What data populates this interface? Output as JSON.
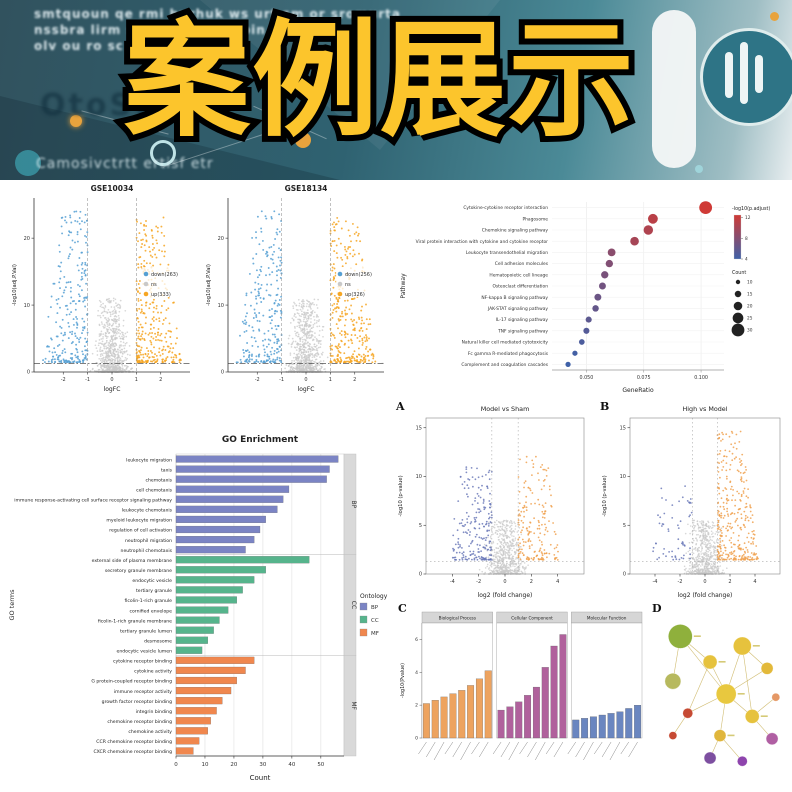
{
  "banner": {
    "title": "案例展示",
    "accent_color": "#fcc52c",
    "lines": [
      "smtquoun qe rmi hurhuk ws urt sm or sromurta",
      "nssbra lirm s qutt bnit to tbin",
      "olv ou ro sc m",
      "OtoSO'tC",
      "Camosivctrtt ertisf etr"
    ]
  },
  "chart_data": [
    {
      "type": "scatter",
      "variant": "volcano",
      "title": "GSE10034",
      "xlabel": "logFC",
      "ylabel": "-log10(adj.P.Val)",
      "xlim": [
        -3.2,
        3.2
      ],
      "ylim": [
        0,
        26
      ],
      "xticks": [
        -2,
        -1,
        0,
        1,
        2
      ],
      "yticks": [
        0,
        10,
        20
      ],
      "vlines": [
        -1,
        1
      ],
      "hline": 1.3,
      "legend": [
        {
          "label": "down(263)",
          "color": "#56a0d3"
        },
        {
          "label": "ns",
          "color": "#c9c9c9"
        },
        {
          "label": "up(333)",
          "color": "#f6a623"
        }
      ],
      "colors": {
        "down": "#56a0d3",
        "ns": "#c9c9c9",
        "up": "#f6a623"
      },
      "counts": {
        "down": 263,
        "ns": 800,
        "up": 333
      },
      "seed": 7
    },
    {
      "type": "scatter",
      "variant": "volcano",
      "title": "GSE18134",
      "xlabel": "logFC",
      "ylabel": "-log10(adj.P.Val)",
      "xlim": [
        -3.2,
        3.2
      ],
      "ylim": [
        0,
        26
      ],
      "xticks": [
        -2,
        -1,
        0,
        1,
        2
      ],
      "yticks": [
        0,
        10,
        20
      ],
      "vlines": [
        -1,
        1
      ],
      "hline": 1.3,
      "legend": [
        {
          "label": "down(256)",
          "color": "#56a0d3"
        },
        {
          "label": "ns",
          "color": "#c9c9c9"
        },
        {
          "label": "up(326)",
          "color": "#f6a623"
        }
      ],
      "colors": {
        "down": "#56a0d3",
        "ns": "#c9c9c9",
        "up": "#f6a623"
      },
      "counts": {
        "down": 256,
        "ns": 800,
        "up": 326
      },
      "seed": 13
    },
    {
      "type": "scatter",
      "variant": "dotplot",
      "xlabel": "GeneRatio",
      "ylabel": "Pathway",
      "xlim": [
        0.035,
        0.11
      ],
      "xticks": [
        0.05,
        0.075,
        0.1
      ],
      "color_legend": {
        "title": "-log10(p.adjust)",
        "min": 4,
        "max": 12.5,
        "ticks": [
          12,
          8,
          4
        ],
        "top_color": "#cf3a36",
        "bottom_color": "#3f61a8"
      },
      "size_legend": {
        "title": "Count",
        "values": [
          10,
          15,
          20,
          25,
          30
        ]
      },
      "rows": [
        {
          "pathway": "Cytokine-cytokine receptor interaction",
          "ratio": 0.102,
          "count": 30,
          "logp": 12.5
        },
        {
          "pathway": "Phagosome",
          "ratio": 0.079,
          "count": 23,
          "logp": 11.2
        },
        {
          "pathway": "Chemokine signaling pathway",
          "ratio": 0.077,
          "count": 22,
          "logp": 10.6
        },
        {
          "pathway": "Viral protein interaction with cytokine and cytokine receptor",
          "ratio": 0.071,
          "count": 20,
          "logp": 10.1
        },
        {
          "pathway": "Leukocyte transendothelial migration",
          "ratio": 0.061,
          "count": 18,
          "logp": 8.4
        },
        {
          "pathway": "Cell adhesion molecules",
          "ratio": 0.06,
          "count": 17,
          "logp": 7.9
        },
        {
          "pathway": "Hematopoietic cell lineage",
          "ratio": 0.058,
          "count": 17,
          "logp": 7.4
        },
        {
          "pathway": "Osteoclast differentiation",
          "ratio": 0.057,
          "count": 16,
          "logp": 7.0
        },
        {
          "pathway": "NF-kappa B signaling pathway",
          "ratio": 0.055,
          "count": 16,
          "logp": 6.6
        },
        {
          "pathway": "JAK-STAT signaling pathway",
          "ratio": 0.054,
          "count": 15,
          "logp": 6.2
        },
        {
          "pathway": "IL-17 signaling pathway",
          "ratio": 0.051,
          "count": 14,
          "logp": 5.8
        },
        {
          "pathway": "TNF signaling pathway",
          "ratio": 0.05,
          "count": 14,
          "logp": 5.3
        },
        {
          "pathway": "Natural killer cell mediated cytotoxicity",
          "ratio": 0.048,
          "count": 13,
          "logp": 4.8
        },
        {
          "pathway": "Fc gamma R-mediated phagocytosis",
          "ratio": 0.045,
          "count": 12,
          "logp": 4.3
        },
        {
          "pathway": "Complement and coagulation cascades",
          "ratio": 0.042,
          "count": 12,
          "logp": 3.8
        }
      ]
    },
    {
      "type": "scatter",
      "variant": "volcano",
      "panel_label": "A",
      "title": "Model vs Sham",
      "xlabel": "log2 (fold change)",
      "ylabel": "-log10 (p-value)",
      "xlim": [
        -6,
        6
      ],
      "ylim": [
        0,
        16
      ],
      "xticks": [
        -4,
        -2,
        0,
        2,
        4
      ],
      "yticks": [
        0,
        5,
        10,
        15
      ],
      "vlines": [
        -1,
        1
      ],
      "hline": 1.3,
      "colors": {
        "down": "#6b79b8",
        "ns": "#c9c9c9",
        "up": "#f0a14f"
      },
      "counts": {
        "down": 210,
        "ns": 700,
        "up": 190
      },
      "seed": 21
    },
    {
      "type": "scatter",
      "variant": "volcano",
      "panel_label": "B",
      "title": "High vs Model",
      "xlabel": "log2 (fold change)",
      "ylabel": "-log10 (p-value)",
      "xlim": [
        -6,
        6
      ],
      "ylim": [
        0,
        16
      ],
      "xticks": [
        -4,
        -2,
        0,
        2,
        4
      ],
      "yticks": [
        0,
        5,
        10,
        15
      ],
      "vlines": [
        -1,
        1
      ],
      "hline": 1.3,
      "colors": {
        "down": "#6b79b8",
        "ns": "#c9c9c9",
        "up": "#f0a14f"
      },
      "counts": {
        "down": 60,
        "ns": 700,
        "up": 330
      },
      "seed": 33
    },
    {
      "type": "bar",
      "variant": "hbar-facets",
      "title": "GO Enrichment",
      "xlabel": "Count",
      "ylabel": "GO terms",
      "xlim": [
        0,
        58
      ],
      "xticks": [
        0,
        10,
        20,
        30,
        40,
        50
      ],
      "legend_title": "Ontology",
      "groups": [
        {
          "name": "BP",
          "color": "#7b84c4",
          "bars": [
            {
              "label": "leukocyte migration",
              "value": 56
            },
            {
              "label": "taxis",
              "value": 53
            },
            {
              "label": "chemotaxis",
              "value": 52
            },
            {
              "label": "cell chemotaxis",
              "value": 39
            },
            {
              "label": "immune response-activating cell surface receptor signaling pathway",
              "value": 37
            },
            {
              "label": "leukocyte chemotaxis",
              "value": 35
            },
            {
              "label": "myeloid leukocyte migration",
              "value": 31
            },
            {
              "label": "regulation of cell activation",
              "value": 29
            },
            {
              "label": "neutrophil migration",
              "value": 27
            },
            {
              "label": "neutrophil chemotaxis",
              "value": 24
            }
          ]
        },
        {
          "name": "CC",
          "color": "#56b48c",
          "bars": [
            {
              "label": "external side of plasma membrane",
              "value": 46
            },
            {
              "label": "secretory granule membrane",
              "value": 31
            },
            {
              "label": "endocytic vesicle",
              "value": 27
            },
            {
              "label": "tertiary granule",
              "value": 23
            },
            {
              "label": "ficolin-1-rich granule",
              "value": 21
            },
            {
              "label": "cornified envelope",
              "value": 18
            },
            {
              "label": "ficolin-1-rich granule membrane",
              "value": 15
            },
            {
              "label": "tertiary granule lumen",
              "value": 13
            },
            {
              "label": "desmosome",
              "value": 11
            },
            {
              "label": "endocytic vesicle lumen",
              "value": 9
            }
          ]
        },
        {
          "name": "MF",
          "color": "#f0874e",
          "bars": [
            {
              "label": "cytokine receptor binding",
              "value": 27
            },
            {
              "label": "cytokine activity",
              "value": 24
            },
            {
              "label": "G protein-coupled receptor binding",
              "value": 21
            },
            {
              "label": "immune receptor activity",
              "value": 19
            },
            {
              "label": "growth factor receptor binding",
              "value": 16
            },
            {
              "label": "integrin binding",
              "value": 14
            },
            {
              "label": "chemokine receptor binding",
              "value": 12
            },
            {
              "label": "chemokine activity",
              "value": 11
            },
            {
              "label": "CCR chemokine receptor binding",
              "value": 8
            },
            {
              "label": "CXCR chemokine receptor binding",
              "value": 6
            }
          ]
        }
      ]
    },
    {
      "type": "bar",
      "variant": "facet-vbar",
      "panel_label": "C",
      "ylabel": "-log10(Pvalue)",
      "ylim": [
        0,
        7
      ],
      "yticks": [
        0,
        2,
        4,
        6
      ],
      "facets": [
        {
          "label": "Biological Process",
          "color": "#eda35f",
          "values": [
            2.1,
            2.3,
            2.5,
            2.7,
            2.9,
            3.2,
            3.6,
            4.1
          ]
        },
        {
          "label": "Cellular Component",
          "color": "#b0619c",
          "values": [
            1.7,
            1.9,
            2.2,
            2.6,
            3.1,
            4.3,
            5.6,
            6.3
          ]
        },
        {
          "label": "Molecular Function",
          "color": "#6a86c0",
          "values": [
            1.1,
            1.2,
            1.3,
            1.4,
            1.5,
            1.6,
            1.8,
            2.0
          ]
        }
      ]
    },
    {
      "type": "network",
      "variant": "network",
      "panel_label": "D",
      "edge_color": "#c9b25a",
      "nodes": [
        {
          "x": 0.18,
          "y": 0.14,
          "r": 12,
          "color": "#8fb03c"
        },
        {
          "x": 0.12,
          "y": 0.42,
          "r": 8,
          "color": "#b7b95e"
        },
        {
          "x": 0.42,
          "y": 0.3,
          "r": 7,
          "color": "#e6c23d"
        },
        {
          "x": 0.68,
          "y": 0.2,
          "r": 9,
          "color": "#e6c23d"
        },
        {
          "x": 0.88,
          "y": 0.34,
          "r": 6,
          "color": "#e3b93a"
        },
        {
          "x": 0.55,
          "y": 0.5,
          "r": 10,
          "color": "#e8c83f"
        },
        {
          "x": 0.24,
          "y": 0.62,
          "r": 5,
          "color": "#c64a33"
        },
        {
          "x": 0.12,
          "y": 0.76,
          "r": 4,
          "color": "#c64a33"
        },
        {
          "x": 0.5,
          "y": 0.76,
          "r": 6,
          "color": "#e0b63c"
        },
        {
          "x": 0.76,
          "y": 0.64,
          "r": 7,
          "color": "#e6c23d"
        },
        {
          "x": 0.92,
          "y": 0.78,
          "r": 6,
          "color": "#b05fa3"
        },
        {
          "x": 0.42,
          "y": 0.9,
          "r": 6,
          "color": "#7d4fa0"
        },
        {
          "x": 0.68,
          "y": 0.92,
          "r": 5,
          "color": "#8e44ad"
        },
        {
          "x": 0.95,
          "y": 0.52,
          "r": 4,
          "color": "#e59866"
        }
      ],
      "edges": [
        [
          5,
          0
        ],
        [
          5,
          2
        ],
        [
          5,
          3
        ],
        [
          5,
          4
        ],
        [
          5,
          8
        ],
        [
          5,
          9
        ],
        [
          5,
          6
        ],
        [
          2,
          0
        ],
        [
          3,
          4
        ],
        [
          8,
          11
        ],
        [
          8,
          12
        ],
        [
          9,
          10
        ],
        [
          9,
          13
        ],
        [
          6,
          7
        ],
        [
          3,
          9
        ],
        [
          2,
          6
        ],
        [
          0,
          1
        ]
      ]
    }
  ]
}
